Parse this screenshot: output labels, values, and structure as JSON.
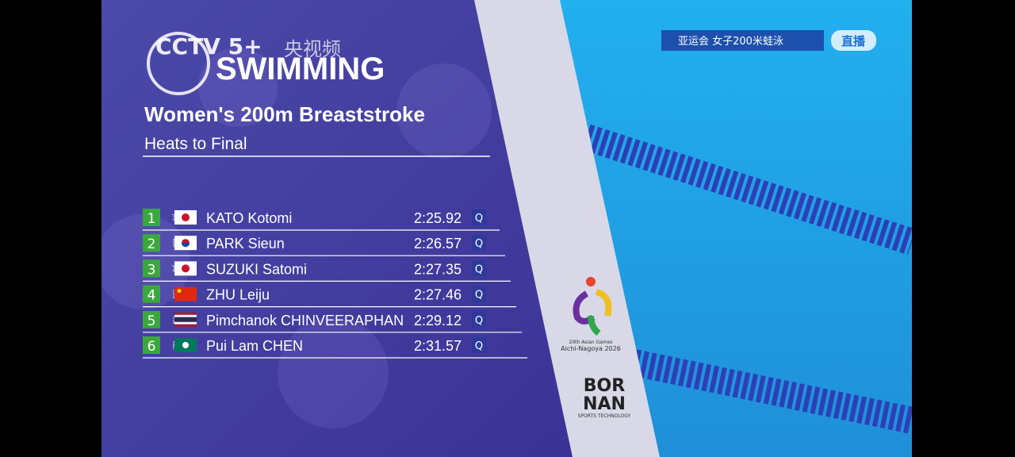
{
  "header": {
    "channel": "CCTV 5+",
    "app": "央视频",
    "sport": "SWIMMING",
    "title": "Women's 200m Breaststroke",
    "subtitle": "Heats to Final"
  },
  "results": {
    "rows": [
      {
        "rank": "1",
        "country": "JPN",
        "name": "KATO Kotomi",
        "time": "2:25.92",
        "status": "Q"
      },
      {
        "rank": "2",
        "country": "KOR",
        "name": "PARK Sieun",
        "time": "2:26.57",
        "status": "Q"
      },
      {
        "rank": "3",
        "country": "JPN",
        "name": "SUZUKI Satomi",
        "time": "2:27.35",
        "status": "Q"
      },
      {
        "rank": "4",
        "country": "CHN",
        "name": "ZHU Leiju",
        "time": "2:27.46",
        "status": "Q"
      },
      {
        "rank": "5",
        "country": "THA",
        "name": "Pimchanok CHINVEERAPHAN",
        "time": "2:29.12",
        "status": "Q"
      },
      {
        "rank": "6",
        "country": "MAC",
        "name": "Pui Lam CHEN",
        "time": "2:31.57",
        "status": "Q"
      }
    ]
  },
  "games_logo": {
    "line1": "20th Asian Games",
    "line2": "Aichi-Nagoya 2026"
  },
  "sponsor": {
    "line1": "BOR",
    "line2": "NAN",
    "line3": "SPORTS TECHNOLOGY"
  },
  "live_badge": {
    "event": "亚运会 女子200米蛙泳",
    "status": "直播"
  }
}
